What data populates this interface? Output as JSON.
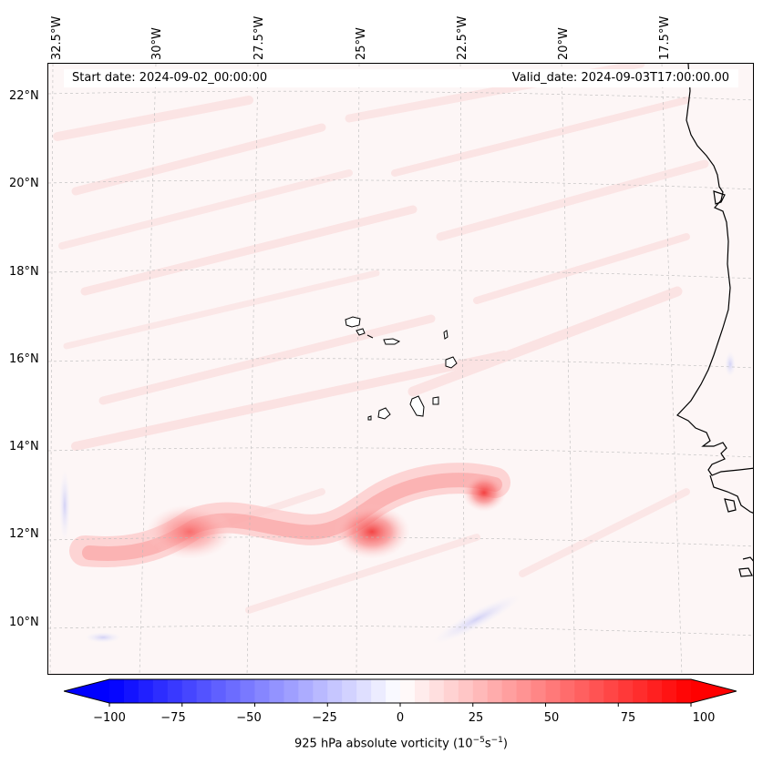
{
  "map": {
    "start_date": "Start date: 2024-09-02_00:00:00",
    "valid_date": "Valid_date: 2024-09-03T17:00:00.00",
    "variable": "925 hPa absolute vorticity",
    "units_prefix": "(10",
    "units_exp1": "−5",
    "units_mid": "s",
    "units_exp2": "−1",
    "units_suffix": ")",
    "longitude_labels": [
      "32.5°W",
      "30°W",
      "27.5°W",
      "25°W",
      "22.5°W",
      "20°W",
      "17.5°W"
    ],
    "latitude_labels": [
      "22°N",
      "20°N",
      "18°N",
      "16°N",
      "14°N",
      "12°N",
      "10°N"
    ]
  },
  "colorbar": {
    "min": -100,
    "max": 100,
    "ticks": [
      "−100",
      "−75",
      "−50",
      "−25",
      "0",
      "25",
      "50",
      "75",
      "100"
    ],
    "negative_color": "#0000ff",
    "positive_color": "#ff0000"
  },
  "colors": {
    "background": "#fdf6f6",
    "coastline": "#000000",
    "grid": "#bbbbbb"
  }
}
